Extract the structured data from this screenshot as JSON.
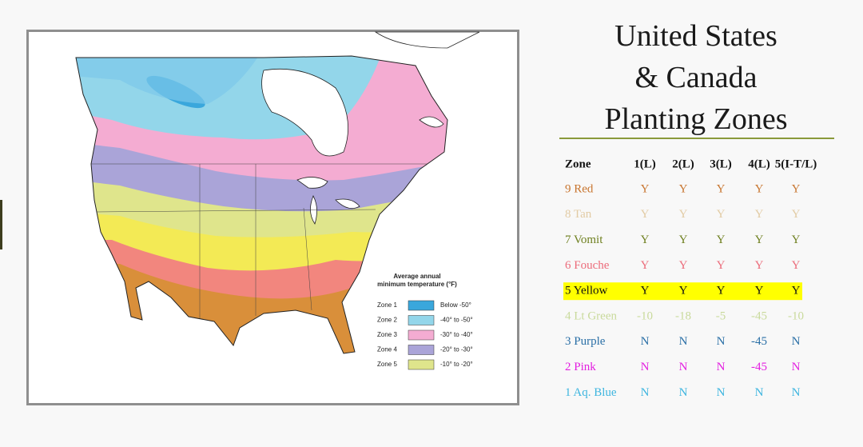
{
  "header": {
    "title_lines": [
      "United States",
      "& Canada",
      "Planting Zones"
    ]
  },
  "map_legend": {
    "title_lines": [
      "Average annual",
      "minimum temperature (°F)"
    ],
    "zones": [
      {
        "label": "Zone 1",
        "color": "#3aa7dc",
        "range": "Below -50°"
      },
      {
        "label": "Zone 2",
        "color": "#93d6ea",
        "range": "-40° to -50°"
      },
      {
        "label": "Zone 3",
        "color": "#f4acd2",
        "range": "-30° to -40°"
      },
      {
        "label": "Zone 4",
        "color": "#aaa4d8",
        "range": "-20° to -30°"
      },
      {
        "label": "Zone 5",
        "color": "#dfe58c",
        "range": "-10° to -20°"
      }
    ]
  },
  "table": {
    "header": [
      "Zone",
      "1(L)",
      "2(L)",
      "3(L)",
      "4(L)",
      "5(I-T/L)"
    ],
    "rows": [
      {
        "label": "9 Red",
        "color": "#c8752f",
        "cells": [
          "Y",
          "Y",
          "Y",
          "Y",
          "Y"
        ]
      },
      {
        "label": "8 Tan",
        "color": "#e2cba4",
        "cells": [
          "Y",
          "Y",
          "Y",
          "Y",
          "Y"
        ]
      },
      {
        "label": "7 Vomit",
        "color": "#6f8020",
        "cells": [
          "Y",
          "Y",
          "Y",
          "Y",
          "Y"
        ]
      },
      {
        "label": "6 Fouche",
        "color": "#ec6b7a",
        "cells": [
          "Y",
          "Y",
          "Y",
          "Y",
          "Y"
        ]
      },
      {
        "label": "5 Yellow",
        "color": "#111111",
        "highlight": "#ffff00",
        "cells": [
          "Y",
          "Y",
          "Y",
          "Y",
          "Y"
        ]
      },
      {
        "label": "4 Lt Green",
        "color": "#c9da9c",
        "cells": [
          -10,
          -18,
          -5,
          -45,
          -10
        ]
      },
      {
        "label": "3 Purple",
        "color": "#2a6fa6",
        "cells": [
          "N",
          "N",
          "N",
          -45,
          "N"
        ]
      },
      {
        "label": "2 Pink",
        "color": "#e320e0",
        "cells": [
          "N",
          "N",
          "N",
          -45,
          "N"
        ]
      },
      {
        "label": "1 Aq. Blue",
        "color": "#3db5df",
        "cells": [
          "N",
          "N",
          "N",
          "N",
          "N"
        ]
      }
    ]
  }
}
